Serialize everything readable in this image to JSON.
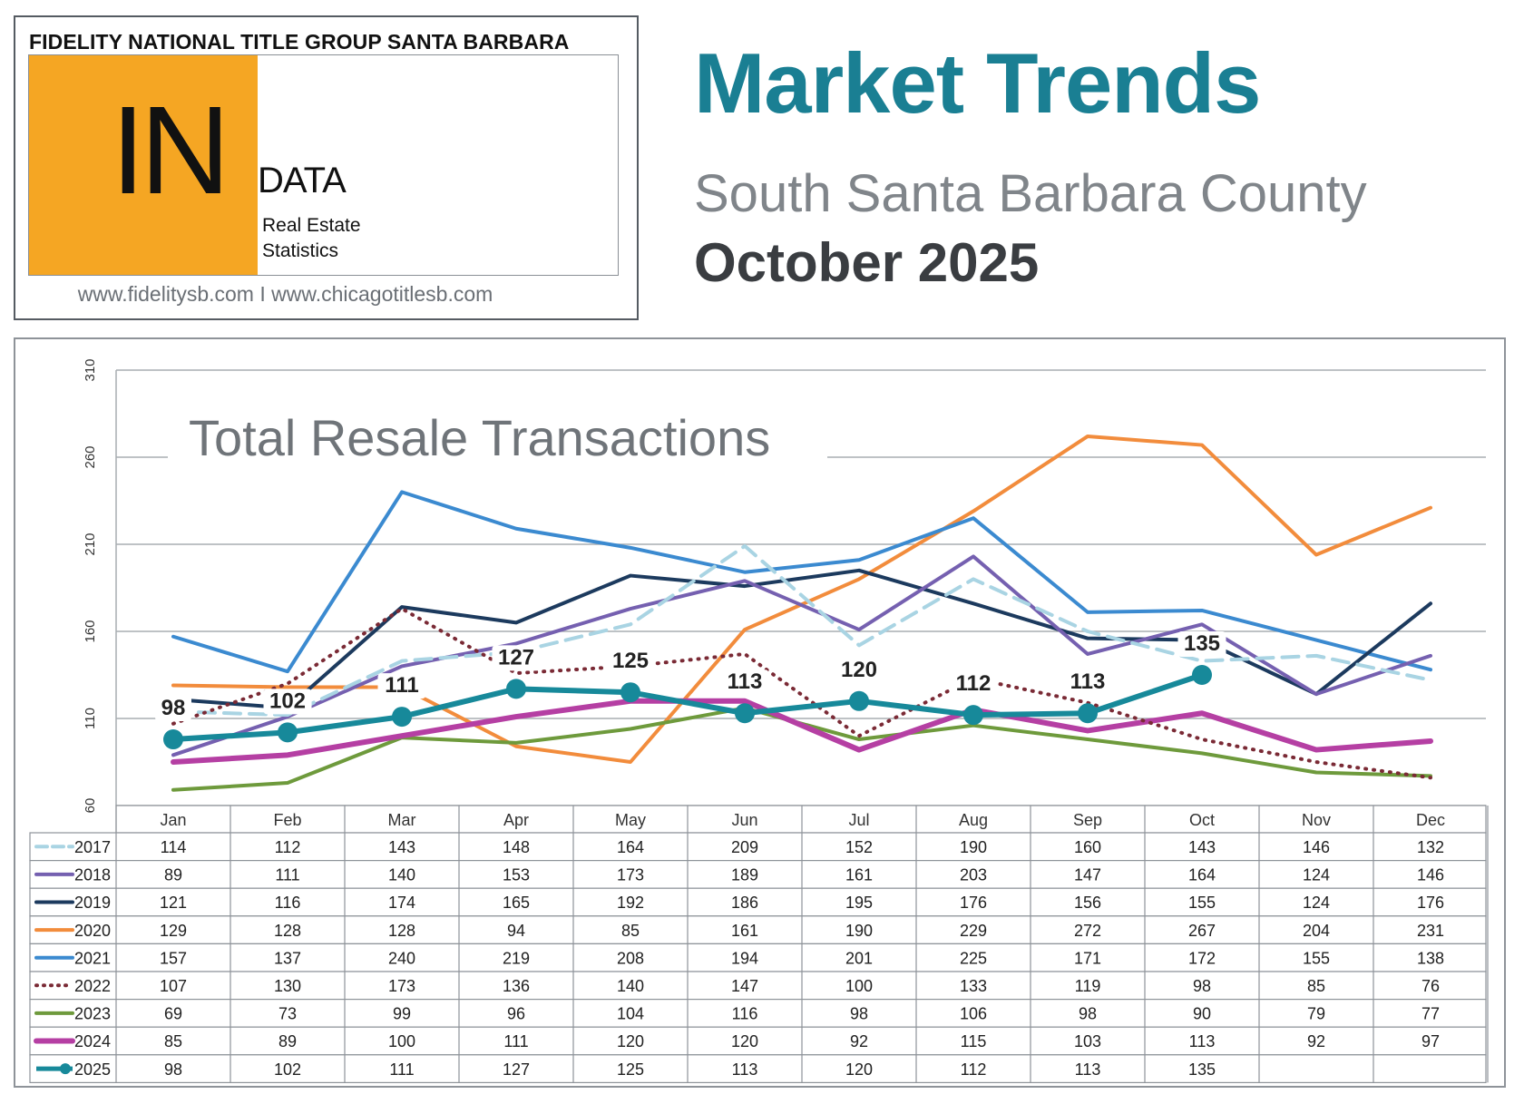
{
  "header": {
    "company": "FIDELITY NATIONAL TITLE GROUP SANTA BARBARA",
    "logo_big": "IN",
    "logo_word": "DATA",
    "logo_sub1": "Real Estate",
    "logo_sub2": "Statistics",
    "urls": "www.fidelitysb.com I www.chicagotitlesb.com",
    "title": "Market Trends",
    "region": "South Santa Barbara County",
    "date": "October 2025"
  },
  "chart_data": {
    "type": "line",
    "title": "Total Resale Transactions",
    "categories": [
      "Jan",
      "Feb",
      "Mar",
      "Apr",
      "May",
      "Jun",
      "Jul",
      "Aug",
      "Sep",
      "Oct",
      "Nov",
      "Dec"
    ],
    "y_ticks": [
      60,
      110,
      160,
      210,
      260,
      310
    ],
    "ylim": [
      60,
      310
    ],
    "grid": true,
    "legend": "table-left",
    "series": [
      {
        "name": "2017",
        "color": "#a9d4e3",
        "style": "dashed",
        "values": [
          114,
          112,
          143,
          148,
          164,
          209,
          152,
          190,
          160,
          143,
          146,
          132
        ]
      },
      {
        "name": "2018",
        "color": "#7560b0",
        "style": "solid",
        "values": [
          89,
          111,
          140,
          153,
          173,
          189,
          161,
          203,
          147,
          164,
          124,
          146
        ]
      },
      {
        "name": "2019",
        "color": "#1c3a5e",
        "style": "solid",
        "values": [
          121,
          116,
          174,
          165,
          192,
          186,
          195,
          176,
          156,
          155,
          124,
          176
        ]
      },
      {
        "name": "2020",
        "color": "#f28c3c",
        "style": "solid",
        "values": [
          129,
          128,
          128,
          94,
          85,
          161,
          190,
          229,
          272,
          267,
          204,
          231
        ]
      },
      {
        "name": "2021",
        "color": "#3b8ad0",
        "style": "solid",
        "values": [
          157,
          137,
          240,
          219,
          208,
          194,
          201,
          225,
          171,
          172,
          155,
          138
        ]
      },
      {
        "name": "2022",
        "color": "#7a2a35",
        "style": "dotted",
        "values": [
          107,
          130,
          173,
          136,
          140,
          147,
          100,
          133,
          119,
          98,
          85,
          76
        ]
      },
      {
        "name": "2023",
        "color": "#6e9a3c",
        "style": "solid",
        "values": [
          69,
          73,
          99,
          96,
          104,
          116,
          98,
          106,
          98,
          90,
          79,
          77
        ]
      },
      {
        "name": "2024",
        "color": "#b53fa3",
        "style": "solid",
        "values": [
          85,
          89,
          100,
          111,
          120,
          120,
          92,
          115,
          103,
          113,
          92,
          97
        ]
      },
      {
        "name": "2025",
        "color": "#17899a",
        "style": "marker",
        "values": [
          98,
          102,
          111,
          127,
          125,
          113,
          120,
          112,
          113,
          135,
          null,
          null
        ]
      }
    ]
  }
}
